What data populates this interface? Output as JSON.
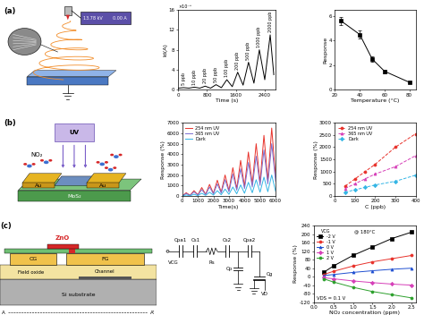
{
  "diagrams": {
    "a": {
      "label": "(a)",
      "display": [
        "13.78 kV",
        "0.00 A"
      ]
    },
    "b": {
      "label": "(b)",
      "light": "UV",
      "gas": "NO₂",
      "electrode": "Au",
      "channel": "MoS₂"
    },
    "c": {
      "label": "(c)",
      "layers": {
        "zno": "ZnO",
        "cg": "CG",
        "fg": "FG",
        "oxide": "Field oxide",
        "channel": "Channel",
        "substrate": "Si substrate"
      },
      "section": [
        "A",
        "A'"
      ],
      "circuit": {
        "input": "VCG",
        "series": [
          "Cpa1",
          "Cs1",
          "Rs",
          "Cs2",
          "Cpa2"
        ],
        "parasitic": "Cp",
        "gate": "Cg",
        "drain": "VD"
      }
    }
  },
  "chart_data": [
    {
      "type": "line",
      "xlabel": "Time (s)",
      "ylabel": "Id(A)",
      "y_multiplier": "×10⁻⁸",
      "x": [
        0,
        150,
        300,
        450,
        600,
        750,
        900,
        1050,
        1200,
        1350,
        1500,
        1650,
        1800,
        1950,
        2100,
        2250,
        2400,
        2550,
        2650
      ],
      "series": [
        {
          "color": "#000000",
          "marker": "none",
          "line_style": "solid",
          "values": [
            0.3,
            0.4,
            0.3,
            0.5,
            0.3,
            0.7,
            0.3,
            1.0,
            0.4,
            2.0,
            0.6,
            3.5,
            0.9,
            5.5,
            1.3,
            8.0,
            2.0,
            11.0,
            3.0
          ]
        }
      ],
      "xlim": [
        0,
        2700
      ],
      "ylim": [
        0,
        16
      ],
      "xticks": [
        0,
        800,
        1600,
        2400
      ],
      "yticks": [
        0,
        4,
        8,
        12,
        16
      ],
      "annotations": [
        {
          "text": "5 ppb",
          "x": 150,
          "y": 0.9
        },
        {
          "text": "10 ppb",
          "x": 450,
          "y": 1.0
        },
        {
          "text": "20 ppb",
          "x": 750,
          "y": 1.2
        },
        {
          "text": "50 ppb",
          "x": 1050,
          "y": 1.5
        },
        {
          "text": "100 ppb",
          "x": 1350,
          "y": 2.5
        },
        {
          "text": "200 ppb",
          "x": 1650,
          "y": 4.0
        },
        {
          "text": "500 ppb",
          "x": 1950,
          "y": 6.0
        },
        {
          "text": "1000 ppb",
          "x": 2250,
          "y": 8.5
        },
        {
          "text": "2000 ppb",
          "x": 2550,
          "y": 11.5
        }
      ]
    },
    {
      "type": "line",
      "xlabel": "Temperature (°C)",
      "ylabel": "Response",
      "x": [
        25,
        40,
        50,
        60,
        80
      ],
      "series": [
        {
          "color": "#000000",
          "marker": "square",
          "line_style": "solid",
          "values": [
            5.6,
            4.5,
            2.5,
            1.5,
            0.6
          ],
          "errors": [
            0.3,
            0.3,
            0.2,
            0.15,
            0.1
          ]
        }
      ],
      "xlim": [
        20,
        85
      ],
      "ylim": [
        0,
        6.5
      ],
      "xticks": [
        20,
        40,
        60,
        80
      ],
      "yticks": [
        0,
        2,
        4,
        6
      ]
    },
    {
      "type": "line",
      "xlabel": "Time(s)",
      "ylabel": "Response (%)",
      "legend": "upper left",
      "x": [
        0,
        250,
        500,
        750,
        1000,
        1250,
        1500,
        1750,
        2000,
        2250,
        2500,
        2750,
        3000,
        3250,
        3500,
        3750,
        4000,
        4250,
        4500,
        4750,
        5000,
        5250,
        5500,
        5750,
        6000
      ],
      "series": [
        {
          "name": "254 nm UV",
          "color": "#e8322b",
          "marker": "none",
          "line_style": "solid",
          "values": [
            0,
            300,
            50,
            500,
            100,
            800,
            150,
            1100,
            250,
            1500,
            350,
            2000,
            500,
            2700,
            700,
            3400,
            900,
            4200,
            1100,
            5000,
            1300,
            5800,
            1500,
            6500,
            1800
          ]
        },
        {
          "name": "365 nm UV",
          "color": "#7b6fd0",
          "marker": "none",
          "line_style": "solid",
          "values": [
            0,
            220,
            40,
            380,
            80,
            600,
            120,
            850,
            200,
            1150,
            280,
            1550,
            400,
            2100,
            550,
            2600,
            700,
            3200,
            850,
            3800,
            1000,
            4400,
            1150,
            5000,
            1400
          ]
        },
        {
          "name": "Dark",
          "color": "#33b5e5",
          "marker": "none",
          "line_style": "solid",
          "values": [
            0,
            80,
            10,
            150,
            30,
            250,
            50,
            350,
            80,
            500,
            110,
            650,
            150,
            850,
            200,
            1050,
            250,
            1300,
            300,
            1550,
            350,
            1800,
            400,
            2000,
            450
          ]
        }
      ],
      "xlim": [
        0,
        6000
      ],
      "ylim": [
        0,
        7000
      ],
      "xticks": [
        0,
        1000,
        2000,
        3000,
        4000,
        5000,
        6000
      ],
      "yticks": [
        0,
        1000,
        2000,
        3000,
        4000,
        5000,
        6000,
        7000
      ]
    },
    {
      "type": "line",
      "xlabel": "C (ppb)",
      "ylabel": "Response (%)",
      "legend": "upper left",
      "x": [
        50,
        100,
        150,
        200,
        300,
        400
      ],
      "series": [
        {
          "name": "254 nm UV",
          "color": "#e8322b",
          "marker": "circle",
          "line_style": "dashed",
          "values": [
            400,
            700,
            1000,
            1300,
            2000,
            2550
          ]
        },
        {
          "name": "365 nm UV",
          "color": "#d63fb8",
          "marker": "triangle",
          "line_style": "dashed",
          "values": [
            300,
            500,
            700,
            900,
            1200,
            1650
          ]
        },
        {
          "name": "Dark",
          "color": "#33b5e5",
          "marker": "diamond",
          "line_style": "dashed",
          "values": [
            150,
            250,
            350,
            450,
            600,
            850
          ]
        }
      ],
      "xlim": [
        0,
        400
      ],
      "ylim": [
        0,
        3000
      ],
      "xticks": [
        0,
        100,
        200,
        300,
        400
      ],
      "yticks": [
        0,
        500,
        1000,
        1500,
        2000,
        2500,
        3000
      ]
    },
    {
      "type": "line",
      "xlabel": "NO₂ concentration (ppm)",
      "ylabel": "Response (%)",
      "legend": "upper left",
      "legend_title": "VCG",
      "notes": [
        "@ 180°C",
        "VDS = 0.1 V"
      ],
      "x": [
        0.25,
        0.5,
        1.0,
        1.5,
        2.0,
        2.5
      ],
      "series": [
        {
          "name": "-2 V",
          "color": "#000000",
          "marker": "square",
          "line_style": "solid",
          "values": [
            20,
            50,
            100,
            140,
            180,
            210
          ]
        },
        {
          "name": "-1 V",
          "color": "#e8322b",
          "marker": "circle",
          "line_style": "solid",
          "values": [
            10,
            25,
            50,
            70,
            85,
            100
          ]
        },
        {
          "name": "0 V",
          "color": "#1f4fd1",
          "marker": "triangle",
          "line_style": "solid",
          "values": [
            5,
            10,
            20,
            28,
            35,
            40
          ]
        },
        {
          "name": "1 V",
          "color": "#d63fb8",
          "marker": "diamond",
          "line_style": "solid",
          "values": [
            -5,
            -10,
            -20,
            -28,
            -35,
            -40
          ]
        },
        {
          "name": "2 V",
          "color": "#2ca02c",
          "marker": "circle",
          "line_style": "solid",
          "values": [
            -10,
            -25,
            -50,
            -70,
            -85,
            -100
          ]
        }
      ],
      "xlim": [
        0.0,
        2.6
      ],
      "ylim": [
        -120,
        240
      ],
      "xticks": [
        0.0,
        0.5,
        1.0,
        1.5,
        2.0,
        2.5
      ],
      "yticks": [
        -120,
        -80,
        -40,
        0,
        40,
        80,
        120,
        160,
        200,
        240
      ]
    }
  ]
}
